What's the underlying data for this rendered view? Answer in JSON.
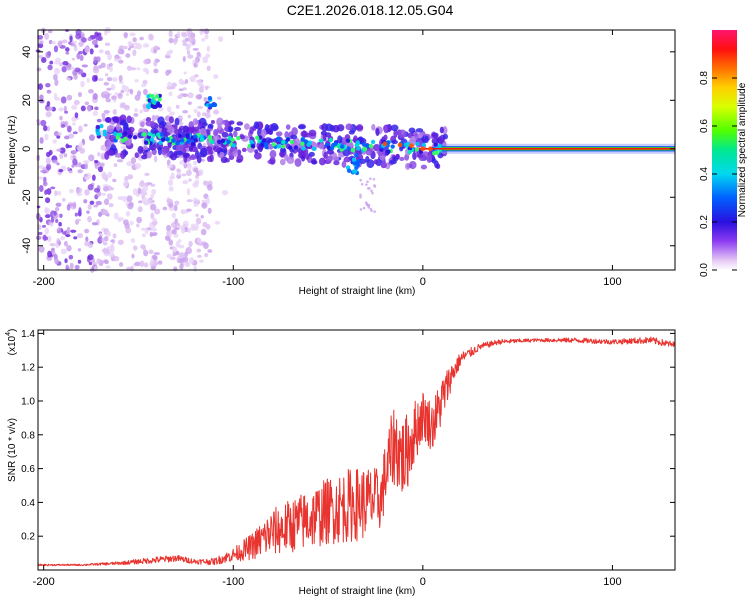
{
  "title": "C2E1.2026.018.12.05.G04",
  "chart_data": [
    {
      "type": "heatmap",
      "xlabel": "Height of straight line (km)",
      "ylabel": "Frequency (Hz)",
      "xlim": [
        -203,
        133
      ],
      "ylim": [
        -50,
        49
      ],
      "x_ticks": [
        -200,
        -100,
        0,
        100
      ],
      "x_tick_labels": [
        "-200",
        "-100",
        "0",
        "100"
      ],
      "y_ticks": [
        -40,
        -20,
        0,
        20,
        40
      ],
      "y_tick_labels": [
        "-40",
        "-20",
        "0",
        "20",
        "40"
      ],
      "colorbar": {
        "label": "Normalized spectral amplitude",
        "range": [
          0,
          1
        ],
        "ticks": [
          0.0,
          0.2,
          0.4,
          0.6,
          0.8
        ],
        "tick_labels": [
          "0.0",
          "0.2",
          "0.4",
          "0.6",
          "0.8"
        ]
      },
      "features": [
        {
          "name": "steady carrier",
          "x_range": [
            10,
            133
          ],
          "frequency": 0,
          "amplitude": 1.0
        },
        {
          "name": "drifting tone",
          "x_range": [
            -165,
            10
          ],
          "frequency_start": 5,
          "frequency_end": 0
        },
        {
          "name": "transient",
          "x": -142,
          "frequency": 19
        },
        {
          "name": "dip",
          "x": -35,
          "frequency": -8
        },
        {
          "name": "diffuse noise",
          "x_range": [
            -203,
            -110
          ],
          "frequency_range": [
            -50,
            49
          ]
        }
      ]
    },
    {
      "type": "line",
      "xlabel": "Height of straight line (km)",
      "ylabel": "SNR (10 * v/v)",
      "y_scale_label": "(x10",
      "y_scale_exponent": "4",
      "xlim": [
        -203,
        133
      ],
      "ylim": [
        0,
        1.42
      ],
      "x_ticks": [
        -200,
        -100,
        0,
        100
      ],
      "x_tick_labels": [
        "-200",
        "-100",
        "0",
        "100"
      ],
      "y_ticks": [
        0.2,
        0.4,
        0.6,
        0.8,
        1.0,
        1.2,
        1.4
      ],
      "y_tick_labels": [
        "0.2",
        "0.4",
        "0.6",
        "0.8",
        "1.0",
        "1.2",
        "1.4"
      ],
      "series": [
        {
          "name": "SNR",
          "color": "#e8332e",
          "x": [
            -203,
            -180,
            -160,
            -140,
            -130,
            -120,
            -110,
            -100,
            -90,
            -80,
            -70,
            -60,
            -50,
            -40,
            -30,
            -22,
            -20,
            -15,
            -10,
            -5,
            0,
            5,
            10,
            15,
            20,
            30,
            40,
            60,
            80,
            100,
            120,
            133
          ],
          "y": [
            0.03,
            0.03,
            0.04,
            0.06,
            0.07,
            0.05,
            0.05,
            0.09,
            0.14,
            0.22,
            0.26,
            0.3,
            0.35,
            0.38,
            0.4,
            0.42,
            0.55,
            0.75,
            0.65,
            0.8,
            0.92,
            0.85,
            1.0,
            1.15,
            1.25,
            1.32,
            1.35,
            1.36,
            1.36,
            1.35,
            1.36,
            1.33
          ],
          "noise": [
            0.005,
            0.005,
            0.01,
            0.02,
            0.02,
            0.015,
            0.02,
            0.04,
            0.08,
            0.14,
            0.16,
            0.18,
            0.2,
            0.22,
            0.22,
            0.18,
            0.2,
            0.25,
            0.25,
            0.2,
            0.15,
            0.15,
            0.15,
            0.08,
            0.04,
            0.02,
            0.015,
            0.01,
            0.015,
            0.015,
            0.02,
            0.02
          ]
        }
      ]
    }
  ]
}
